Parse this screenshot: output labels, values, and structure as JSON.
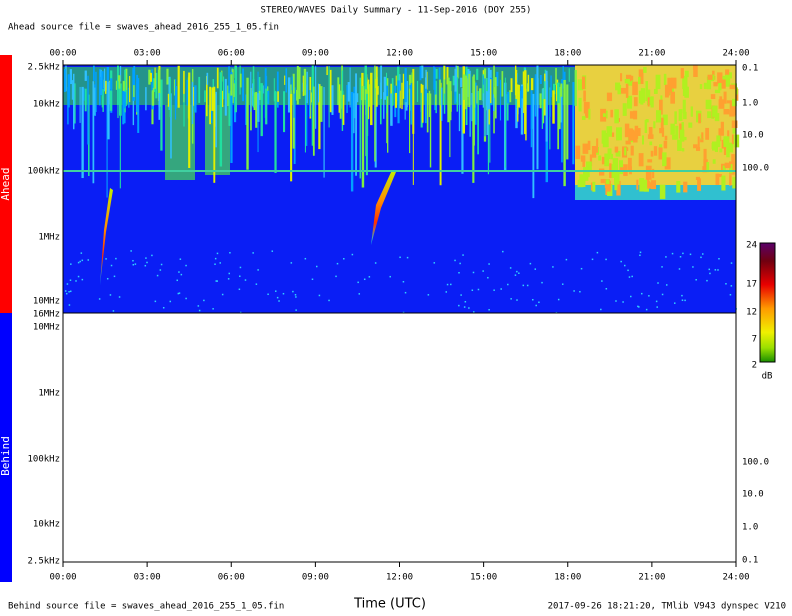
{
  "title": "STEREO/WAVES Daily Summary - 11-Sep-2016 (DOY 255)",
  "ahead_source": "Ahead source file = swaves_ahead_2016_255_1_05.fin",
  "behind_source": "Behind source file = swaves_ahead_2016_255_1_05.fin",
  "x_axis_label": "Time (UTC)",
  "credit": "2017-09-26 18:21:20, TMlib V943 dynspec V210",
  "time_ticks": [
    "00:00",
    "03:00",
    "06:00",
    "09:00",
    "12:00",
    "15:00",
    "18:00",
    "21:00",
    "24:00"
  ],
  "ahead_panel": {
    "label": "Ahead",
    "freq_labels": [
      "2.5kHz",
      "10kHz",
      "100kHz",
      "1MHz",
      "10MHz",
      "16MHz"
    ],
    "right_labels": [
      "0.1",
      "1.0",
      "10.0",
      "100.0"
    ]
  },
  "behind_panel": {
    "label": "Behind",
    "freq_labels": [
      "10MHz",
      "1MHz",
      "100kHz",
      "10kHz",
      "2.5kHz"
    ],
    "right_labels": [
      "100.0",
      "10.0",
      "1.0",
      "0.1"
    ]
  },
  "colorbar": {
    "labels": [
      "24",
      "17",
      "12",
      "7",
      "2"
    ],
    "unit": "dB"
  }
}
